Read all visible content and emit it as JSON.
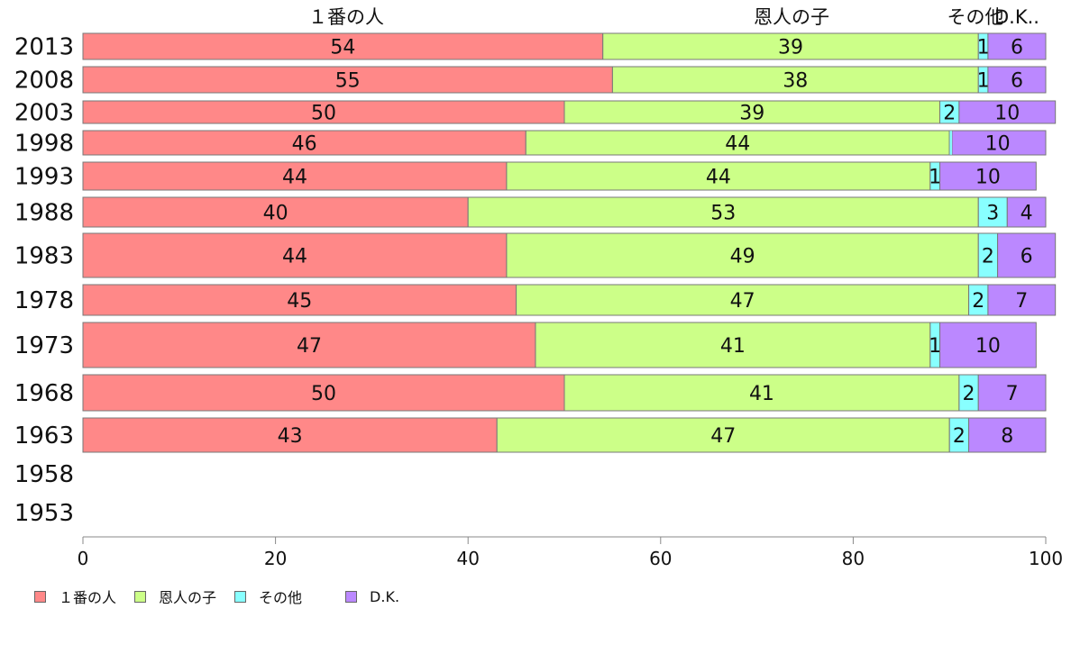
{
  "chart_data": {
    "type": "bar",
    "orientation": "horizontal",
    "stacked": true,
    "categories": [
      "2013",
      "2008",
      "2003",
      "1998",
      "1993",
      "1988",
      "1983",
      "1978",
      "1973",
      "1968",
      "1963",
      "1958",
      "1953"
    ],
    "series": [
      {
        "name": "１番の人",
        "color": "#ff8888",
        "values": [
          54,
          55,
          50,
          46,
          44,
          40,
          44,
          45,
          47,
          50,
          43,
          null,
          null
        ]
      },
      {
        "name": "恩人の子",
        "color": "#ccff88",
        "values": [
          39,
          38,
          39,
          44,
          44,
          53,
          49,
          47,
          41,
          41,
          47,
          null,
          null
        ]
      },
      {
        "name": "その他",
        "color": "#88ffff",
        "values": [
          1,
          1,
          2,
          null,
          1,
          3,
          2,
          2,
          1,
          2,
          2,
          null,
          null
        ]
      },
      {
        "name": "D.K.",
        "color": "#bb88ff",
        "values": [
          6,
          6,
          10,
          10,
          10,
          4,
          6,
          7,
          10,
          7,
          8,
          null,
          null
        ]
      }
    ],
    "top_labels": [
      "１番の人",
      "恩人の子",
      "その他",
      "D.K.."
    ],
    "xlim": [
      0,
      100
    ],
    "xticks": [
      0,
      20,
      40,
      60,
      80,
      100
    ],
    "legend_position": "bottom"
  }
}
